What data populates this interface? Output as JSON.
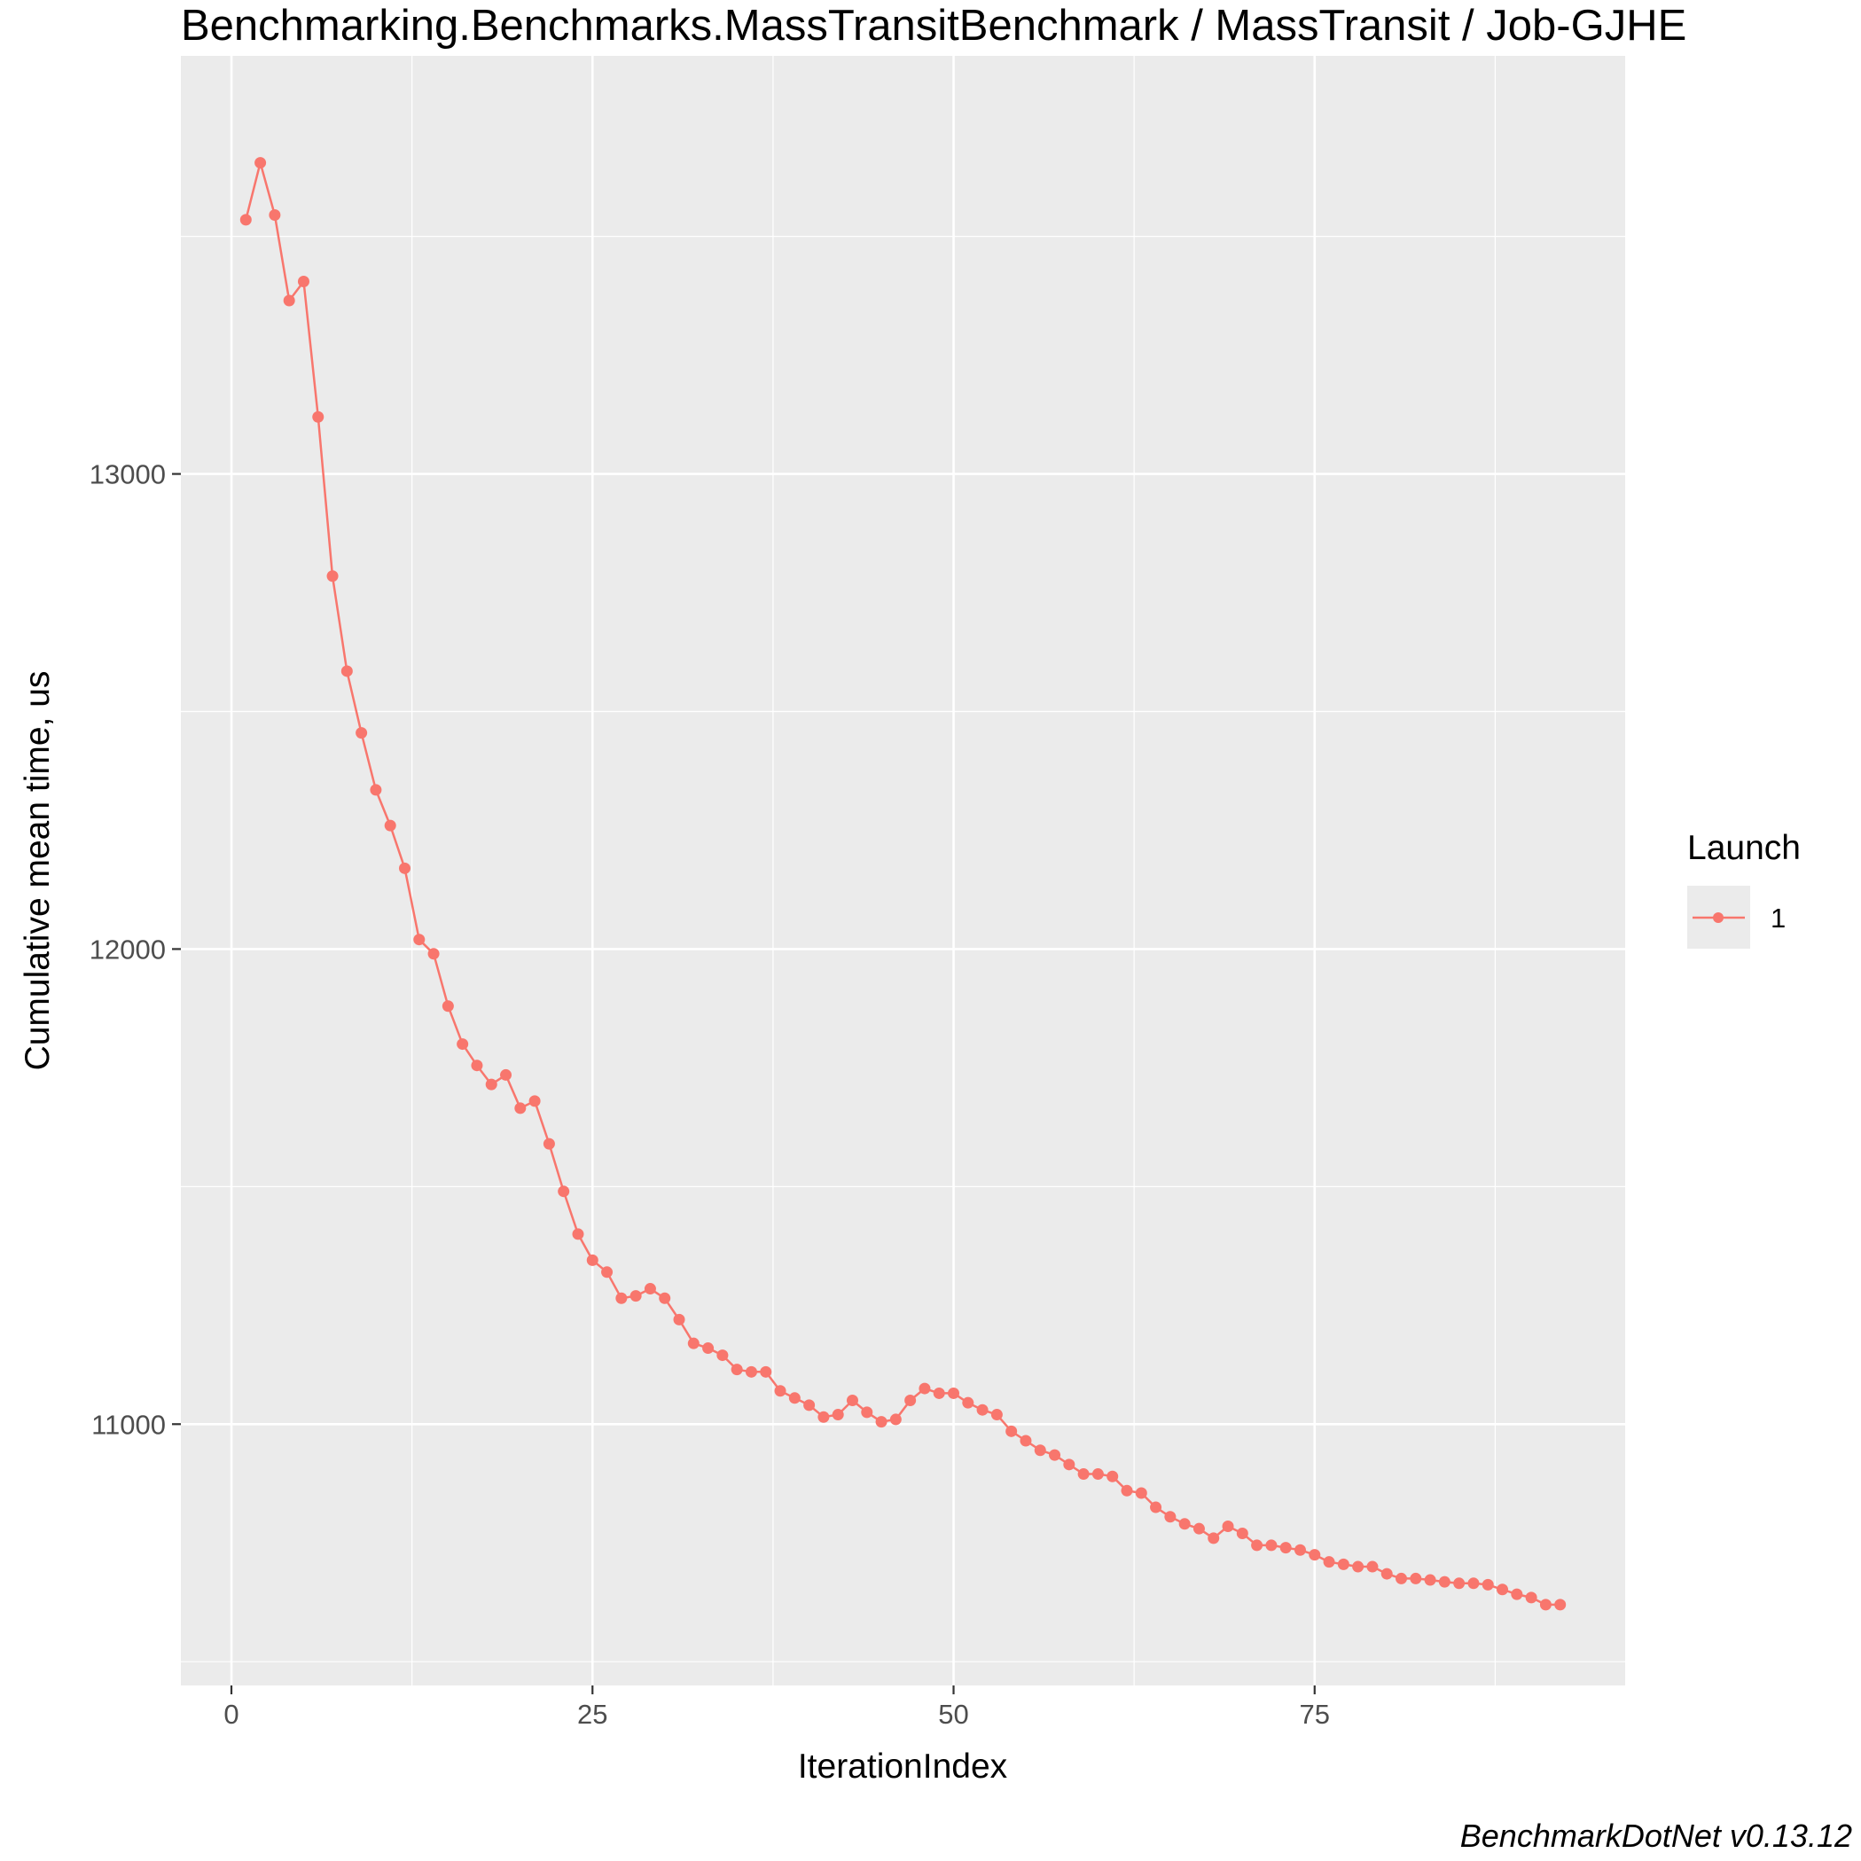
{
  "chart_data": {
    "type": "line",
    "title": "Benchmarking.Benchmarks.MassTransitBenchmark / MassTransit / Job-GJHE",
    "xlabel": "IterationIndex",
    "ylabel": "Cumulative mean time, us",
    "caption": "BenchmarkDotNet v0.13.12",
    "xlim": [
      -3.5,
      96.5
    ],
    "ylim": [
      10450,
      13880
    ],
    "x_ticks": [
      0,
      25,
      50,
      75
    ],
    "x_tick_labels": [
      "0",
      "25",
      "50",
      "75"
    ],
    "x_minor_ticks": [
      12.5,
      37.5,
      62.5,
      87.5
    ],
    "y_ticks": [
      11000,
      12000,
      13000
    ],
    "y_tick_labels": [
      "11000",
      "12000",
      "13000"
    ],
    "y_minor_ticks": [
      10500,
      11500,
      12500,
      13500
    ],
    "grid": true,
    "legend": {
      "title": "Launch",
      "position": "right"
    },
    "series": [
      {
        "name": "1",
        "color": "#f8766d",
        "x": [
          1,
          2,
          3,
          4,
          5,
          6,
          7,
          8,
          9,
          10,
          11,
          12,
          13,
          14,
          15,
          16,
          17,
          18,
          19,
          20,
          21,
          22,
          23,
          24,
          25,
          26,
          27,
          28,
          29,
          30,
          31,
          32,
          33,
          34,
          35,
          36,
          37,
          38,
          39,
          40,
          41,
          42,
          43,
          44,
          45,
          46,
          47,
          48,
          49,
          50,
          51,
          52,
          53,
          54,
          55,
          56,
          57,
          58,
          59,
          60,
          61,
          62,
          63,
          64,
          65,
          66,
          67,
          68,
          69,
          70,
          71,
          72,
          73,
          74,
          75,
          76,
          77,
          78,
          79,
          80,
          81,
          82,
          83,
          84,
          85,
          86,
          87,
          88,
          89,
          90,
          91,
          92
        ],
        "y": [
          13535,
          13655,
          13545,
          13365,
          13405,
          13120,
          12785,
          12585,
          12455,
          12335,
          12260,
          12170,
          12020,
          11990,
          11880,
          11800,
          11755,
          11715,
          11735,
          11665,
          11680,
          11590,
          11490,
          11400,
          11345,
          11320,
          11265,
          11270,
          11285,
          11265,
          11220,
          11170,
          11160,
          11145,
          11115,
          11110,
          11110,
          11070,
          11055,
          11040,
          11015,
          11020,
          11050,
          11025,
          11005,
          11010,
          11050,
          11075,
          11065,
          11065,
          11045,
          11030,
          11020,
          10985,
          10965,
          10945,
          10935,
          10915,
          10895,
          10895,
          10890,
          10860,
          10855,
          10825,
          10805,
          10790,
          10780,
          10760,
          10785,
          10770,
          10745,
          10745,
          10740,
          10735,
          10725,
          10710,
          10705,
          10700,
          10700,
          10685,
          10675,
          10675,
          10672,
          10668,
          10665,
          10665,
          10662,
          10652,
          10642,
          10635,
          10620,
          10620
        ]
      }
    ]
  }
}
